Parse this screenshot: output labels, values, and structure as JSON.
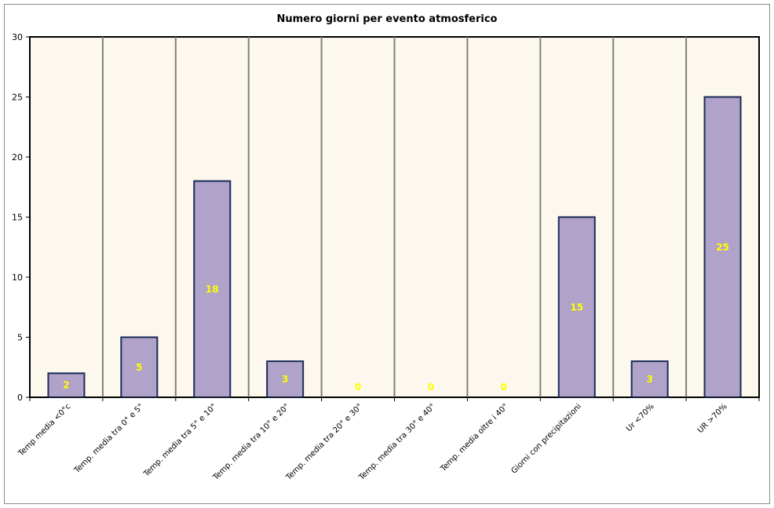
{
  "chart_data": {
    "type": "bar",
    "title": "Numero giorni per evento atmosferico",
    "categories": [
      "Temp media <0°c",
      "Temp. media tra 0° e 5°",
      "Temp. media tra 5° e 10°",
      "Temp. media tra 10° e 20°",
      "Temp. media tra 20° e 30°",
      "Temp. media tra 30° e 40°",
      "Temp. media oltre i 40°",
      "Giorni con precipitazioni",
      "Ur <70%",
      "UR >70%"
    ],
    "values": [
      2,
      5,
      18,
      3,
      0,
      0,
      0,
      15,
      3,
      25
    ],
    "ylim": [
      0,
      30
    ],
    "yticks": [
      0,
      5,
      10,
      15,
      20,
      25,
      30
    ],
    "grid": "vertical",
    "legend": "none",
    "colors": {
      "bar_fill": "#b0a2c8",
      "bar_stroke": "#1c2b5a",
      "plot_background": "#fdf8ee",
      "grid_line": "#808080",
      "data_label": "#ffff00"
    }
  }
}
